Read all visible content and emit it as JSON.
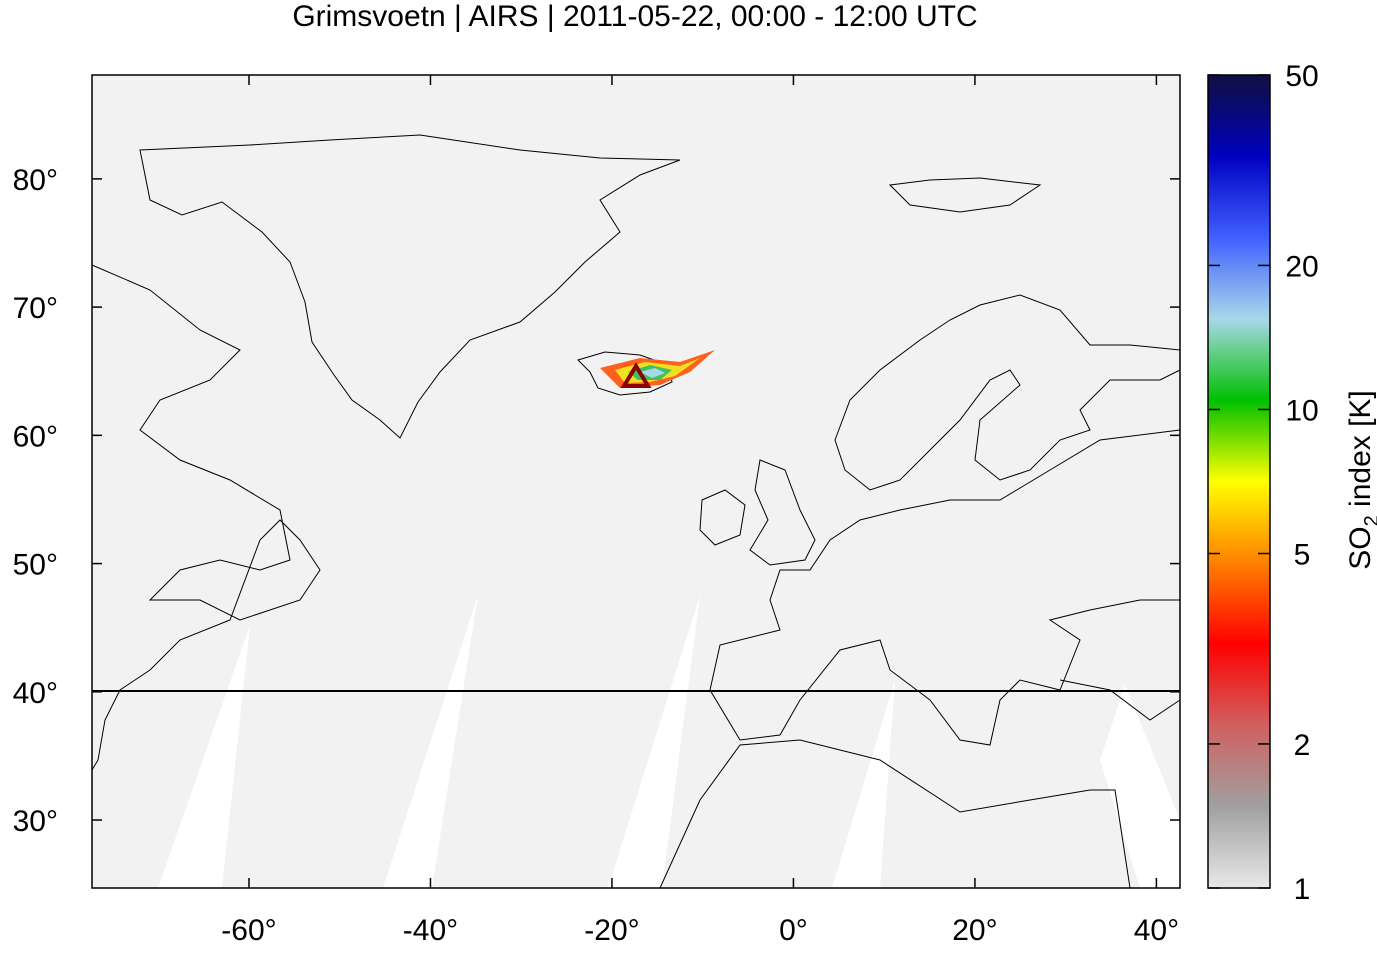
{
  "chart_data": {
    "type": "map",
    "title": "Grimsvoetn | AIRS | 2011-05-22, 00:00 - 12:00 UTC",
    "xlim": [
      -77.3,
      42.6
    ],
    "ylim": [
      24.7,
      88.1
    ],
    "xticks": [
      {
        "value": -60,
        "label": "-60°"
      },
      {
        "value": -40,
        "label": "-40°"
      },
      {
        "value": -20,
        "label": "-20°"
      },
      {
        "value": 0,
        "label": "0°"
      },
      {
        "value": 20,
        "label": "20°"
      },
      {
        "value": 40,
        "label": "40°"
      }
    ],
    "yticks": [
      {
        "value": 30,
        "label": "30°"
      },
      {
        "value": 40,
        "label": "40°"
      },
      {
        "value": 50,
        "label": "50°"
      },
      {
        "value": 60,
        "label": "60°"
      },
      {
        "value": 70,
        "label": "70°"
      },
      {
        "value": 80,
        "label": "80°"
      }
    ],
    "colorbar": {
      "label": "SO",
      "label_subscript": "2",
      "label_rest": " index [K]",
      "lim": [
        1,
        50
      ],
      "log": true,
      "ticks": [
        1,
        2,
        5,
        10,
        20,
        50
      ],
      "colors": [
        "#e8e8e8",
        "#a0a0a0",
        "#d06060",
        "#ff0000",
        "#ff8000",
        "#ffff00",
        "#00c000",
        "#a8d8e8",
        "#4060ff",
        "#0000c0",
        "#101040"
      ]
    }
  }
}
